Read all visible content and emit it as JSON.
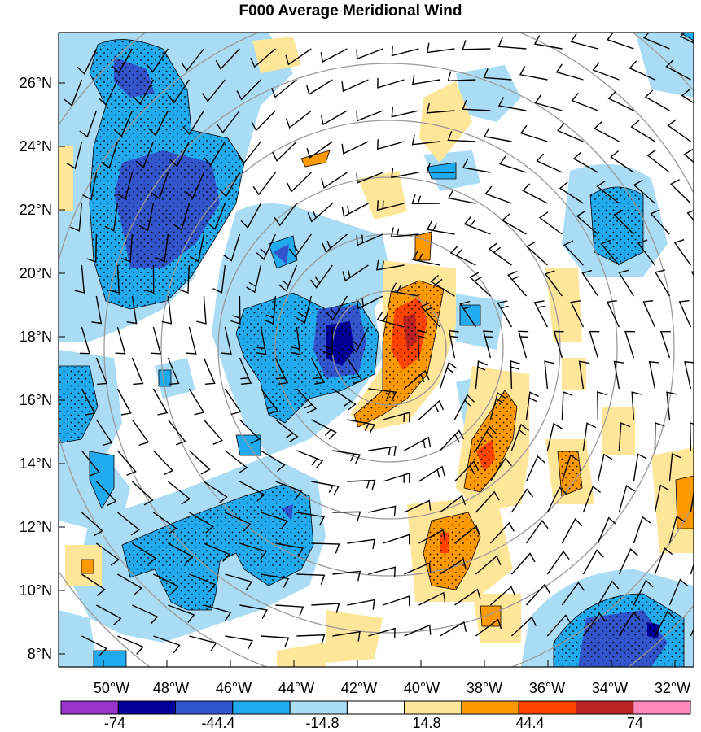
{
  "title": "F000 Average Meridional Wind",
  "map": {
    "lat_labels": [
      "26°N",
      "24°N",
      "22°N",
      "20°N",
      "18°N",
      "16°N",
      "14°N",
      "12°N",
      "10°N",
      "8°N"
    ],
    "lon_labels": [
      "50°W",
      "48°W",
      "46°W",
      "44°W",
      "42°W",
      "40°W",
      "38°W",
      "36°W",
      "34°W",
      "32°W"
    ]
  },
  "colorbar": {
    "colors": [
      "#9933cc",
      "#000099",
      "#3355cc",
      "#22aaee",
      "#aaddf5",
      "#ffffff",
      "#ffe699",
      "#ff9900",
      "#ff4400",
      "#bb2222",
      "#ff88bb"
    ],
    "labels": [
      "-74",
      "-44.4",
      "-14.8",
      "14.8",
      "44.4",
      "74"
    ]
  },
  "colors": {
    "light_blue": "#aaddf5",
    "mid_blue": "#22aaee",
    "dark_blue": "#3355cc",
    "navy": "#000099",
    "light_yellow": "#ffe699",
    "orange": "#ff9900",
    "red_orange": "#ff4400",
    "dark_red": "#bb2222",
    "range_ring": "#999999"
  }
}
